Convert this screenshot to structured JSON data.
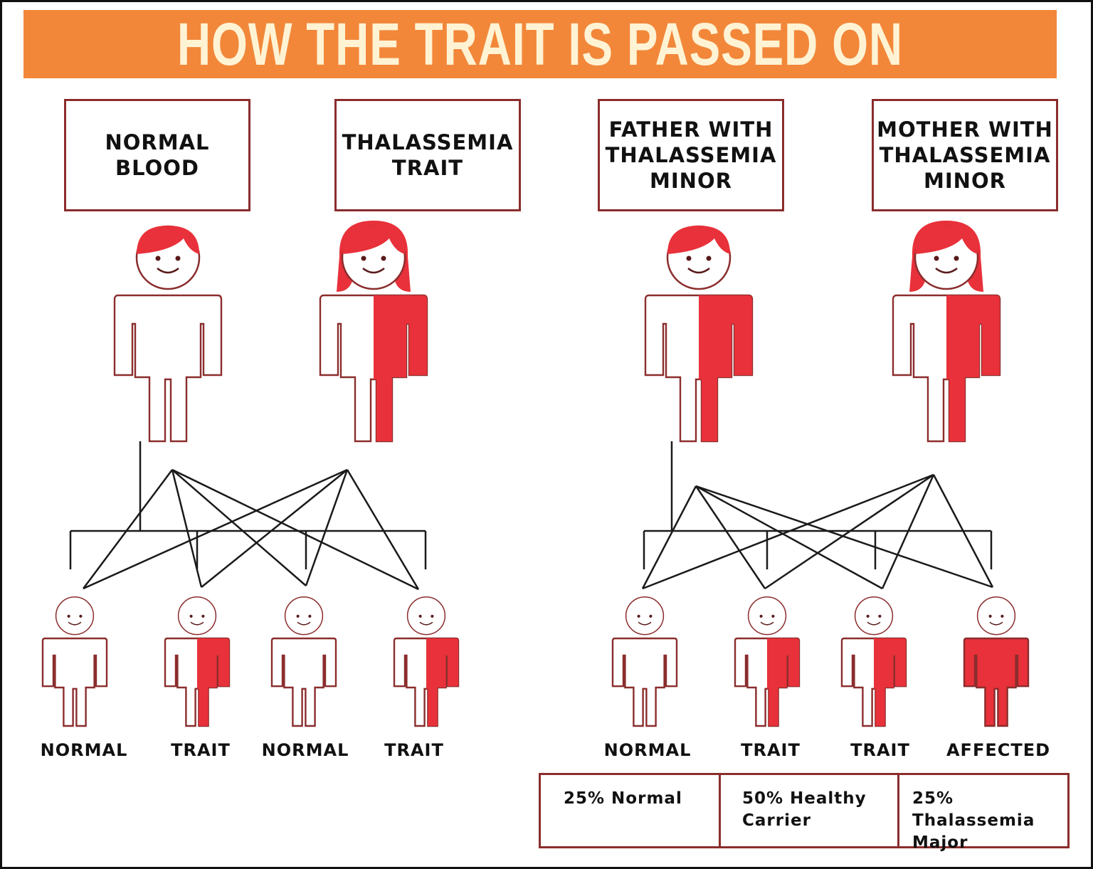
{
  "title": "HOW THE TRAIT IS PASSED ON",
  "colors": {
    "banner": "#f2873a",
    "banner_text": "#fff3d4",
    "affected": "#e8313a",
    "outline": "#8b2d2d"
  },
  "left_family": {
    "parents": [
      {
        "label": "NORMAL\nBLOOD",
        "gender": "male",
        "status": "normal"
      },
      {
        "label": "THALASSEMIA\nTRAIT",
        "gender": "female",
        "status": "trait"
      }
    ],
    "children": [
      {
        "label": "NORMAL",
        "status": "normal"
      },
      {
        "label": "TRAIT",
        "status": "trait"
      },
      {
        "label": "NORMAL",
        "status": "normal"
      },
      {
        "label": "TRAIT",
        "status": "trait"
      }
    ]
  },
  "right_family": {
    "parents": [
      {
        "label": "FATHER WITH\nTHALASSEMIA\nMINOR",
        "gender": "male",
        "status": "trait"
      },
      {
        "label": "MOTHER WITH\nTHALASSEMIA\nMINOR",
        "gender": "female",
        "status": "trait"
      }
    ],
    "children": [
      {
        "label": "NORMAL",
        "status": "normal"
      },
      {
        "label": "TRAIT",
        "status": "trait"
      },
      {
        "label": "TRAIT",
        "status": "trait"
      },
      {
        "label": "AFFECTED",
        "status": "affected"
      }
    ],
    "outcomes": [
      "25% Normal",
      "50% Healthy\nCarrier",
      "25% Thalassemia\nMajor"
    ]
  }
}
